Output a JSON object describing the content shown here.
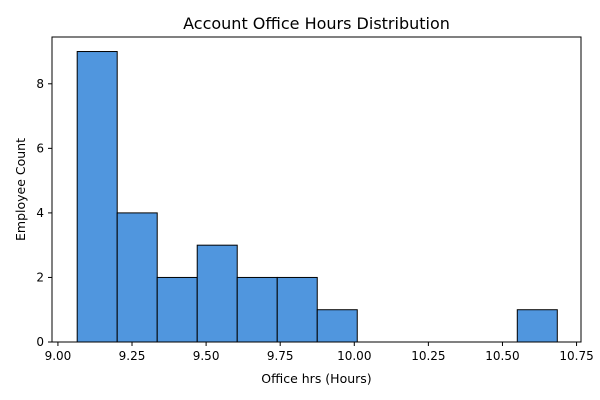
{
  "chart_data": {
    "type": "bar",
    "subtype": "histogram",
    "title": "Account Office Hours Distribution",
    "xlabel": "Office hrs (Hours)",
    "ylabel": "Employee Count",
    "bin_edges": [
      9.065,
      9.2,
      9.335,
      9.47,
      9.605,
      9.74,
      9.875,
      10.01,
      10.145,
      10.28,
      10.415,
      10.55,
      10.685
    ],
    "bins": [
      {
        "start": 9.065,
        "end": 9.2,
        "count": 9
      },
      {
        "start": 9.2,
        "end": 9.335,
        "count": 4
      },
      {
        "start": 9.335,
        "end": 9.47,
        "count": 2
      },
      {
        "start": 9.47,
        "end": 9.605,
        "count": 3
      },
      {
        "start": 9.605,
        "end": 9.74,
        "count": 2
      },
      {
        "start": 9.74,
        "end": 9.875,
        "count": 2
      },
      {
        "start": 9.875,
        "end": 10.01,
        "count": 1
      },
      {
        "start": 10.01,
        "end": 10.145,
        "count": 0
      },
      {
        "start": 10.145,
        "end": 10.28,
        "count": 0
      },
      {
        "start": 10.28,
        "end": 10.415,
        "count": 0
      },
      {
        "start": 10.415,
        "end": 10.55,
        "count": 0
      },
      {
        "start": 10.55,
        "end": 10.685,
        "count": 1
      }
    ],
    "xlim": [
      8.98,
      10.765
    ],
    "ylim": [
      0,
      9.45
    ],
    "xticks": [
      {
        "value": 9.0,
        "label": "9.00"
      },
      {
        "value": 9.25,
        "label": "9.25"
      },
      {
        "value": 9.5,
        "label": "9.50"
      },
      {
        "value": 9.75,
        "label": "9.75"
      },
      {
        "value": 10.0,
        "label": "10.00"
      },
      {
        "value": 10.25,
        "label": "10.25"
      },
      {
        "value": 10.5,
        "label": "10.50"
      },
      {
        "value": 10.75,
        "label": "10.75"
      }
    ],
    "yticks": [
      {
        "value": 0,
        "label": "0"
      },
      {
        "value": 2,
        "label": "2"
      },
      {
        "value": 4,
        "label": "4"
      },
      {
        "value": 6,
        "label": "6"
      },
      {
        "value": 8,
        "label": "8"
      }
    ],
    "grid": false,
    "bar_color": "#5096de",
    "bar_edge_color": "#000000"
  }
}
